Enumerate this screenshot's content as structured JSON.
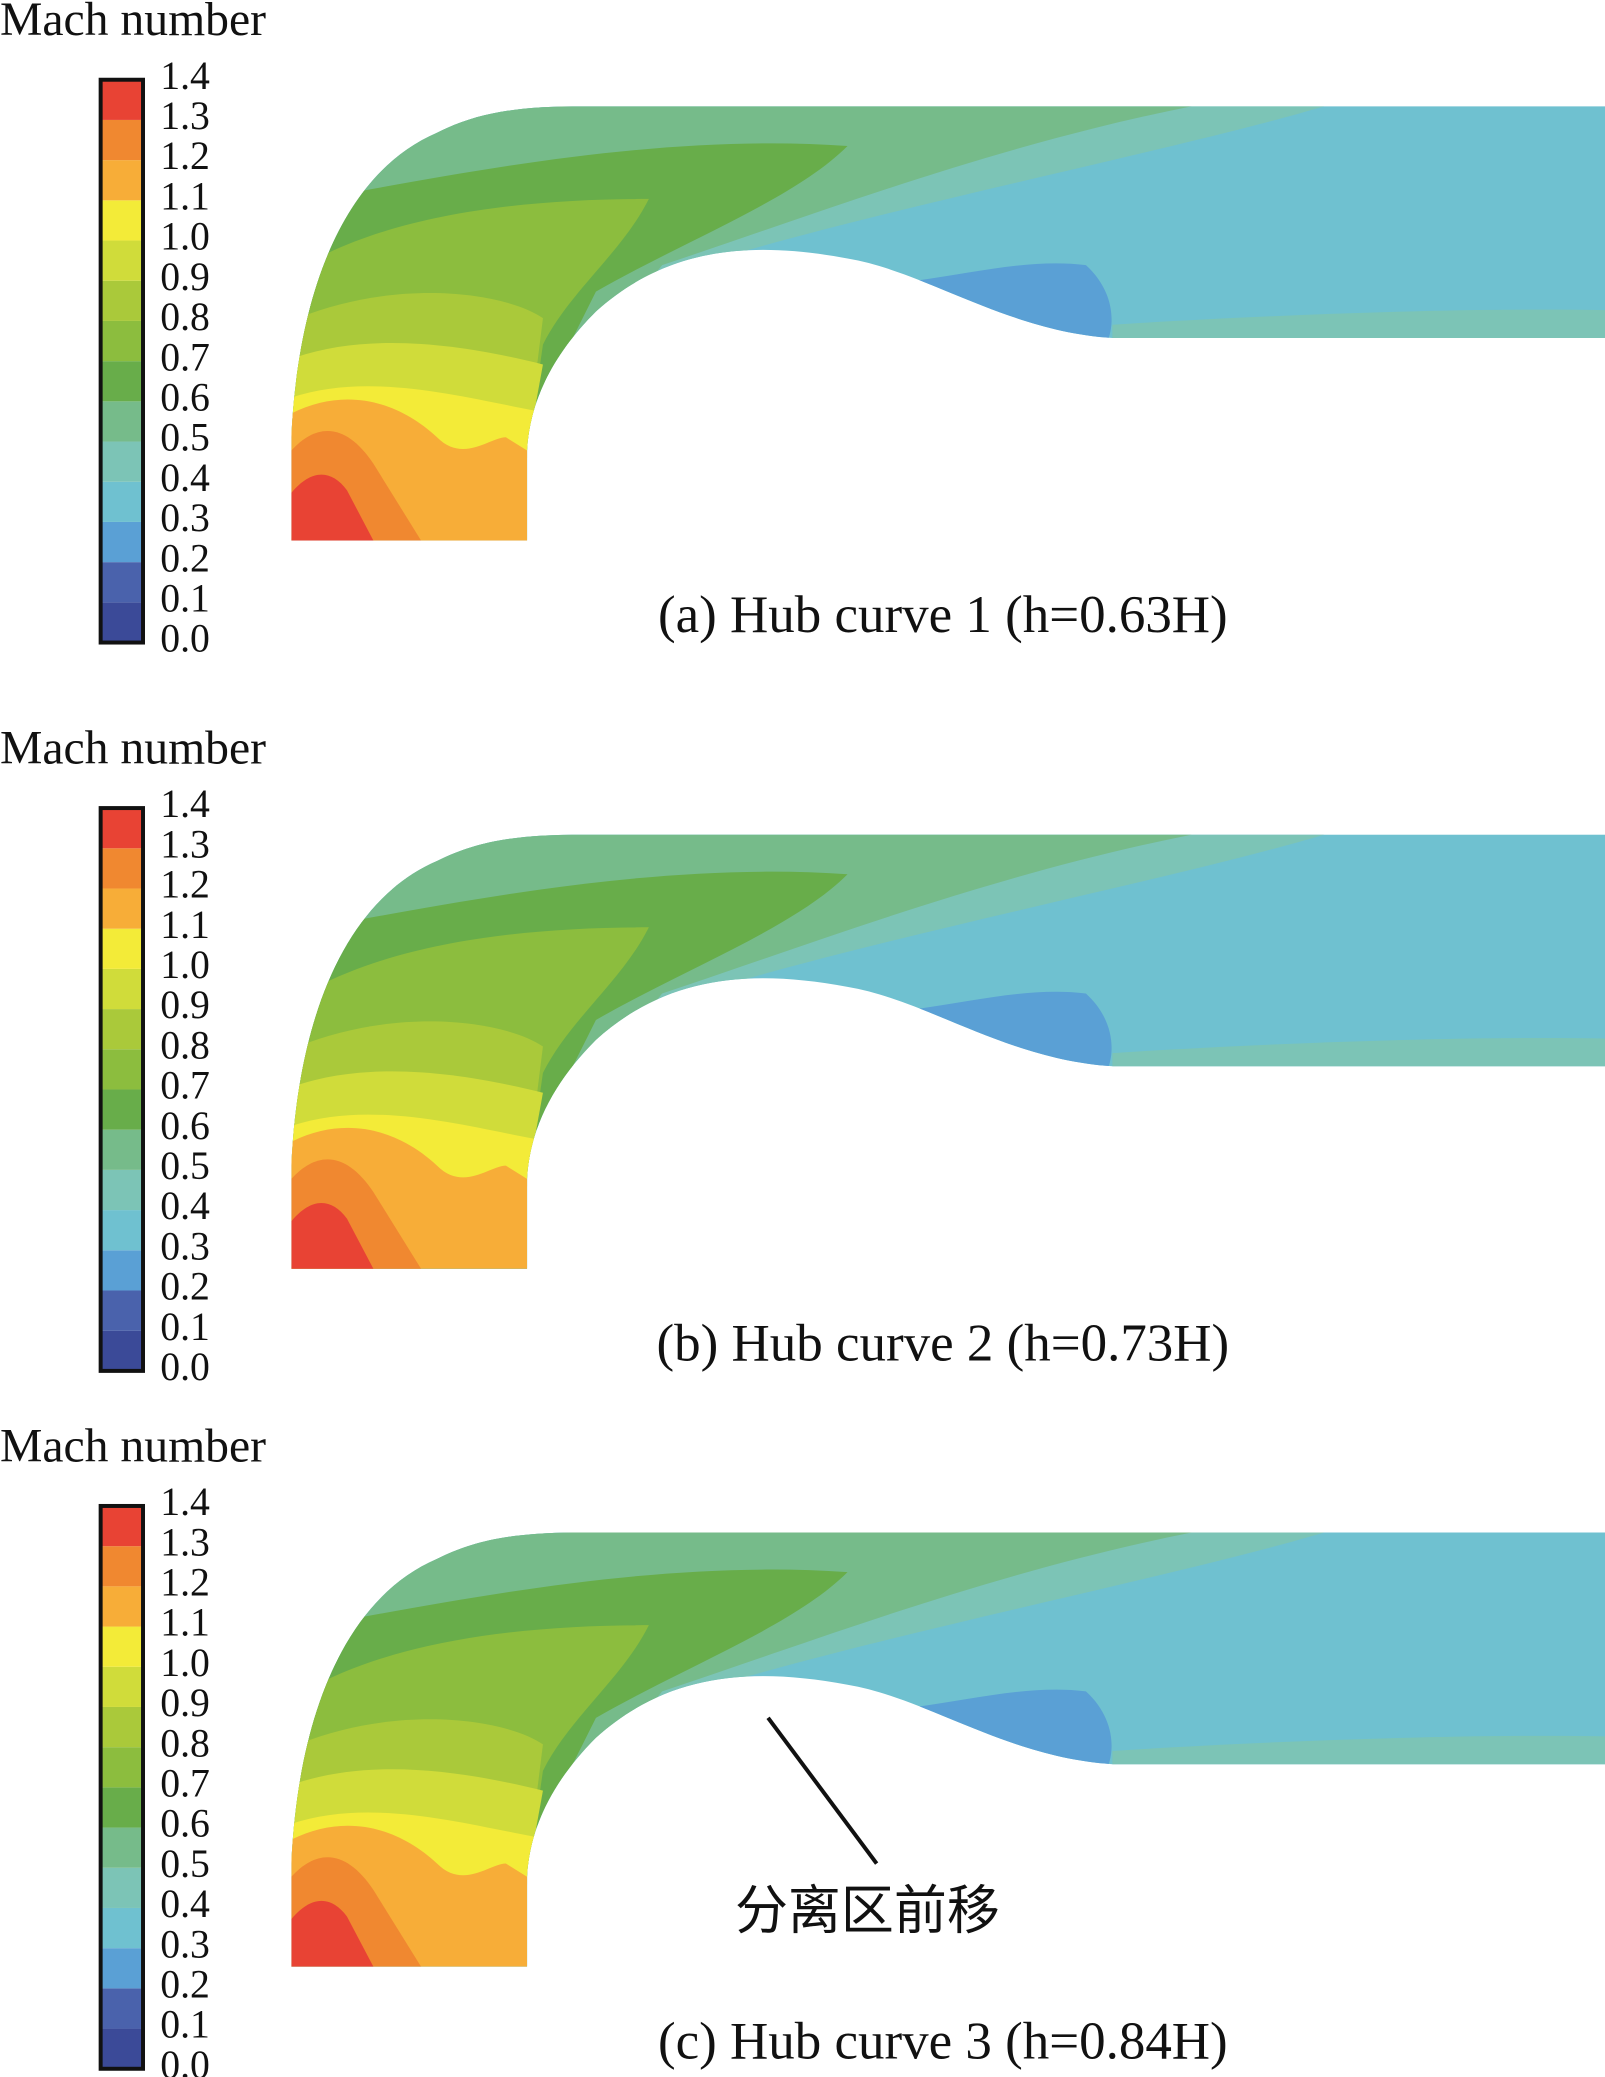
{
  "chart_data": [
    {
      "type": "contour",
      "title": "Mach number",
      "clim": [
        0,
        1.4
      ],
      "cticks": [
        {
          "value": 0,
          "label": "0.0"
        },
        0.1,
        0.2,
        0.3,
        0.4,
        0.5,
        0.6,
        0.7,
        0.8,
        0.9,
        {
          "value": 1,
          "label": "1.0"
        },
        1.1,
        1.2,
        1.3,
        1.4
      ],
      "colors": [
        "#3b4a98",
        "#4a62ac",
        "#5aa0d5",
        "#6fc1d0",
        "#7cc4b6",
        "#76bb8a",
        "#68ad4a",
        "#8cbd3e",
        "#aac93a",
        "#d0dc3a",
        "#f3eb38",
        "#f7ad38",
        "#f08830",
        "#e84334"
      ],
      "caption": "(a) Hub curve 1 (h=0.63H)"
    },
    {
      "type": "contour",
      "title": "Mach number",
      "clim": [
        0,
        1.4
      ],
      "cticks": [
        {
          "value": 0,
          "label": "0.0"
        },
        0.1,
        0.2,
        0.3,
        0.4,
        0.5,
        0.6,
        0.7,
        0.8,
        0.9,
        {
          "value": 1,
          "label": "1.0"
        },
        1.1,
        1.2,
        1.3,
        1.4
      ],
      "colors": [
        "#3b4a98",
        "#4a62ac",
        "#5aa0d5",
        "#6fc1d0",
        "#7cc4b6",
        "#76bb8a",
        "#68ad4a",
        "#8cbd3e",
        "#aac93a",
        "#d0dc3a",
        "#f3eb38",
        "#f7ad38",
        "#f08830",
        "#e84334"
      ],
      "caption": "(b) Hub curve 2 (h=0.73H)"
    },
    {
      "type": "contour",
      "title": "Mach number",
      "clim": [
        0,
        1.4
      ],
      "cticks": [
        {
          "value": 0,
          "label": "0.0"
        },
        0.1,
        0.2,
        0.3,
        0.4,
        0.5,
        0.6,
        0.7,
        0.8,
        0.9,
        {
          "value": 1,
          "label": "1.0"
        },
        1.1,
        1.2,
        1.3,
        1.4
      ],
      "colors": [
        "#3b4a98",
        "#4a62ac",
        "#5aa0d5",
        "#6fc1d0",
        "#7cc4b6",
        "#76bb8a",
        "#68ad4a",
        "#8cbd3e",
        "#aac93a",
        "#d0dc3a",
        "#f3eb38",
        "#f7ad38",
        "#f08830",
        "#e84334"
      ],
      "caption": "(c) Hub curve 3 (h=0.84H)",
      "annotation": "分离区前移"
    }
  ]
}
